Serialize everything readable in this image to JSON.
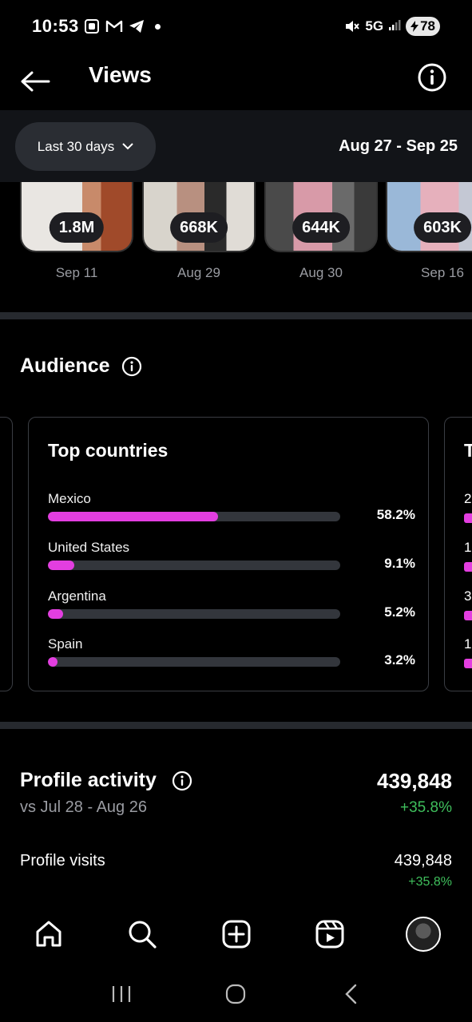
{
  "status_bar": {
    "time": "10:53",
    "network": "5G",
    "battery": "78"
  },
  "header": {
    "title": "Views"
  },
  "filter": {
    "range_label": "Last 30 days",
    "date_range": "Aug 27 - Sep 25"
  },
  "top_content": [
    {
      "views": "1.8M",
      "date": "Sep 11"
    },
    {
      "views": "668K",
      "date": "Aug 29"
    },
    {
      "views": "644K",
      "date": "Aug 30"
    },
    {
      "views": "603K",
      "date": "Sep 16"
    }
  ],
  "audience": {
    "title": "Audience",
    "card_title": "Top countries",
    "countries": [
      {
        "name": "Mexico",
        "pct": "58.2%",
        "value": 58.2
      },
      {
        "name": "United States",
        "pct": "9.1%",
        "value": 9.1
      },
      {
        "name": "Argentina",
        "pct": "5.2%",
        "value": 5.2
      },
      {
        "name": "Spain",
        "pct": "3.2%",
        "value": 3.2
      }
    ],
    "next_card_peek": {
      "title_char": "T",
      "row_chars": [
        "2",
        "1",
        "3",
        "1"
      ]
    }
  },
  "profile_activity": {
    "title": "Profile activity",
    "comparison": "vs Jul 28 - Aug 26",
    "total": "439,848",
    "change": "+35.8%",
    "visits_label": "Profile visits",
    "visits_value": "439,848",
    "visits_change": "+35.8%"
  },
  "icons": {
    "nav": [
      "home-icon",
      "search-icon",
      "create-icon",
      "reels-icon",
      "profile-avatar"
    ],
    "accent": "#e33ee0",
    "positive": "#3fbf5c"
  }
}
